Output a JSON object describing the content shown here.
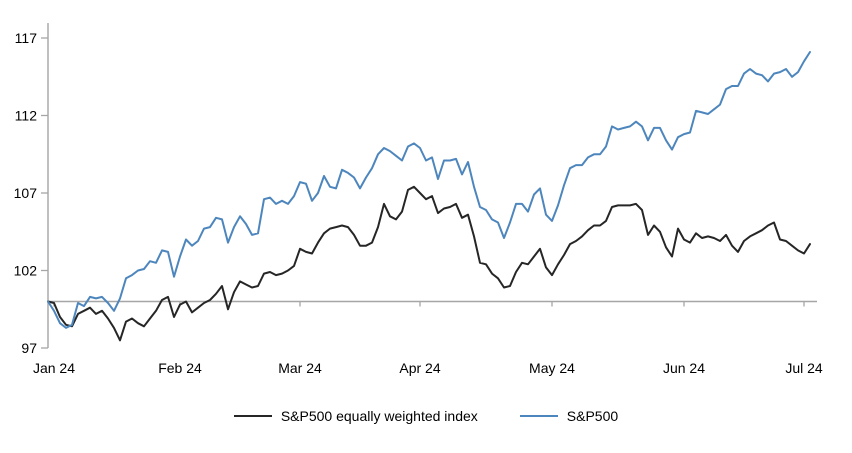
{
  "chart_data": {
    "type": "line",
    "title": "",
    "xlabel": "",
    "ylabel": "",
    "y_axis": {
      "ticks": [
        97,
        102,
        107,
        112,
        117
      ],
      "min": 97,
      "max": 118,
      "baseline": 100
    },
    "x_axis": {
      "ticks": [
        {
          "label": "Jan 24",
          "day": 1
        },
        {
          "label": "Feb 24",
          "day": 22
        },
        {
          "label": "Mar 24",
          "day": 42
        },
        {
          "label": "Apr 24",
          "day": 62
        },
        {
          "label": "May 24",
          "day": 84
        },
        {
          "label": "Jun 24",
          "day": 106
        },
        {
          "label": "Jul 24",
          "day": 126
        }
      ],
      "total_days": 127
    },
    "grid": "baseline-only",
    "legend_position": "bottom-center",
    "axis_color": "#a6a6a6",
    "text_color": "#000000",
    "series": [
      {
        "name": "S&P500 equally weighted index",
        "color": "#262626",
        "values": [
          100.0,
          99.9,
          99.0,
          98.5,
          98.4,
          99.2,
          99.4,
          99.6,
          99.2,
          99.4,
          98.9,
          98.3,
          97.5,
          98.7,
          98.9,
          98.6,
          98.4,
          98.9,
          99.4,
          100.1,
          100.3,
          99.0,
          99.8,
          100.0,
          99.3,
          99.6,
          99.9,
          100.1,
          100.5,
          101.0,
          99.5,
          100.6,
          101.3,
          101.1,
          100.9,
          101.0,
          101.8,
          101.9,
          101.7,
          101.8,
          102.0,
          102.3,
          103.4,
          103.2,
          103.1,
          103.8,
          104.4,
          104.7,
          104.8,
          104.9,
          104.8,
          104.3,
          103.6,
          103.6,
          103.8,
          104.8,
          106.3,
          105.5,
          105.3,
          105.8,
          107.2,
          107.4,
          107.0,
          106.6,
          106.8,
          105.7,
          106.0,
          106.1,
          106.3,
          105.4,
          105.6,
          104.2,
          102.5,
          102.4,
          101.8,
          101.5,
          100.9,
          101.0,
          101.9,
          102.5,
          102.4,
          102.9,
          103.4,
          102.2,
          101.7,
          102.4,
          103.0,
          103.7,
          103.9,
          104.2,
          104.6,
          104.9,
          104.9,
          105.2,
          106.1,
          106.2,
          106.2,
          106.2,
          106.3,
          105.9,
          104.3,
          104.9,
          104.5,
          103.5,
          102.9,
          104.7,
          104.0,
          103.8,
          104.4,
          104.1,
          104.2,
          104.1,
          103.9,
          104.3,
          103.6,
          103.2,
          103.9,
          104.2,
          104.4,
          104.6,
          104.9,
          105.1,
          104.0,
          103.9,
          103.6,
          103.3,
          103.1,
          103.7
        ]
      },
      {
        "name": "S&P500",
        "color": "#4d86bd",
        "values": [
          100.0,
          99.4,
          98.6,
          98.3,
          98.5,
          99.9,
          99.7,
          100.3,
          100.2,
          100.3,
          99.9,
          99.4,
          100.2,
          101.5,
          101.7,
          102.0,
          102.1,
          102.6,
          102.5,
          103.3,
          103.2,
          101.6,
          102.9,
          104.0,
          103.6,
          103.9,
          104.7,
          104.8,
          105.4,
          105.3,
          103.8,
          104.8,
          105.5,
          105.0,
          104.3,
          104.4,
          106.6,
          106.7,
          106.3,
          106.5,
          106.3,
          106.8,
          107.7,
          107.6,
          106.5,
          107.0,
          108.1,
          107.4,
          107.3,
          108.5,
          108.3,
          108.0,
          107.3,
          108.0,
          108.6,
          109.5,
          109.9,
          109.7,
          109.4,
          109.1,
          110.0,
          110.2,
          109.9,
          109.1,
          109.3,
          107.9,
          109.1,
          109.1,
          109.2,
          108.2,
          109.0,
          107.4,
          106.1,
          105.9,
          105.3,
          105.1,
          104.1,
          105.1,
          106.3,
          106.3,
          105.8,
          106.9,
          107.3,
          105.6,
          105.2,
          106.2,
          107.5,
          108.6,
          108.8,
          108.8,
          109.3,
          109.5,
          109.5,
          110.0,
          111.3,
          111.1,
          111.2,
          111.3,
          111.6,
          111.3,
          110.4,
          111.2,
          111.2,
          110.4,
          109.8,
          110.6,
          110.8,
          110.9,
          112.3,
          112.2,
          112.1,
          112.4,
          112.7,
          113.7,
          113.9,
          113.9,
          114.7,
          115.0,
          114.7,
          114.6,
          114.2,
          114.7,
          114.8,
          115.0,
          114.5,
          114.8,
          115.5,
          116.1
        ]
      }
    ]
  }
}
